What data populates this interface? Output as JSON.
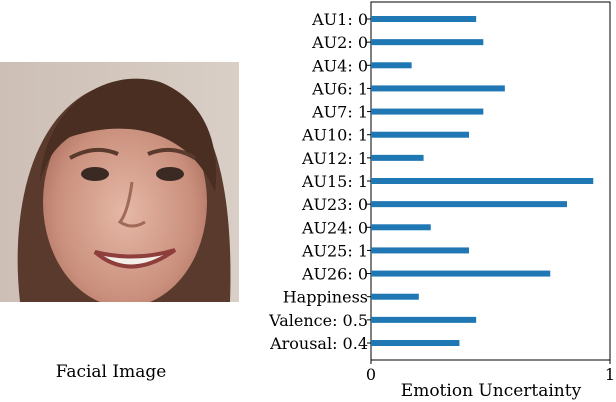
{
  "figure": {
    "image_caption": "Facial Image",
    "face_image": {
      "description_icon": "face-photo-icon"
    }
  },
  "colors": {
    "bar": "#1f77b4",
    "axis": "#000000",
    "background": "#ffffff"
  },
  "chart_data": {
    "type": "bar",
    "orientation": "horizontal",
    "categories": [
      "AU1: 0",
      "AU2: 0",
      "AU4: 0",
      "AU6: 1",
      "AU7: 1",
      "AU10: 1",
      "AU12: 1",
      "AU15: 1",
      "AU23: 0",
      "AU24: 0",
      "AU25: 1",
      "AU26: 0",
      "Happiness",
      "Valence: 0.5",
      "Arousal: 0.4"
    ],
    "values": [
      0.44,
      0.47,
      0.17,
      0.56,
      0.47,
      0.41,
      0.22,
      0.93,
      0.82,
      0.25,
      0.41,
      0.75,
      0.2,
      0.44,
      0.37
    ],
    "xlabel": "Emotion Uncertainty",
    "ylabel": "",
    "xlim": [
      0,
      1
    ],
    "xticks": [
      "0",
      "1"
    ],
    "grid": false,
    "legend": "none"
  }
}
